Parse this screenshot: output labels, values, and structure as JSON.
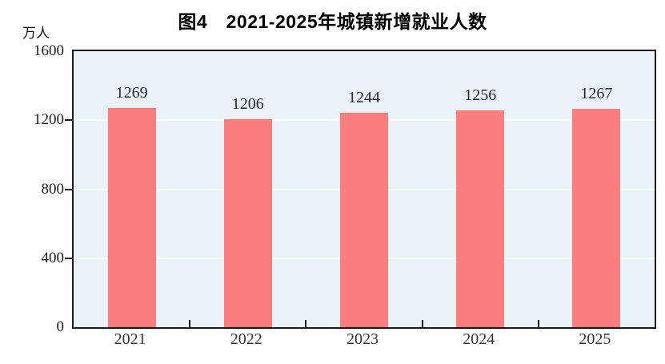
{
  "figure": {
    "title": "图4　2021-2025年城镇新增就业人数",
    "unit_label": "万人"
  },
  "chart_data": {
    "type": "bar",
    "title": "图4　2021-2025年城镇新增就业人数",
    "ylabel": "万人",
    "xlabel": "",
    "categories": [
      "2021",
      "2022",
      "2023",
      "2024",
      "2025"
    ],
    "values": [
      1269,
      1206,
      1244,
      1256,
      1267
    ],
    "ylim": [
      0,
      1600
    ],
    "yticks": [
      0,
      400,
      800,
      1200,
      1600
    ],
    "grid": "horizontal",
    "legend": "none",
    "data_labels": true,
    "colors": {
      "bar": "#FC7D7D",
      "plot_background": "#E9F2F6",
      "gridline": "#FFFFFF",
      "axis": "#1A1A1A",
      "label_text": "#26262E"
    }
  }
}
